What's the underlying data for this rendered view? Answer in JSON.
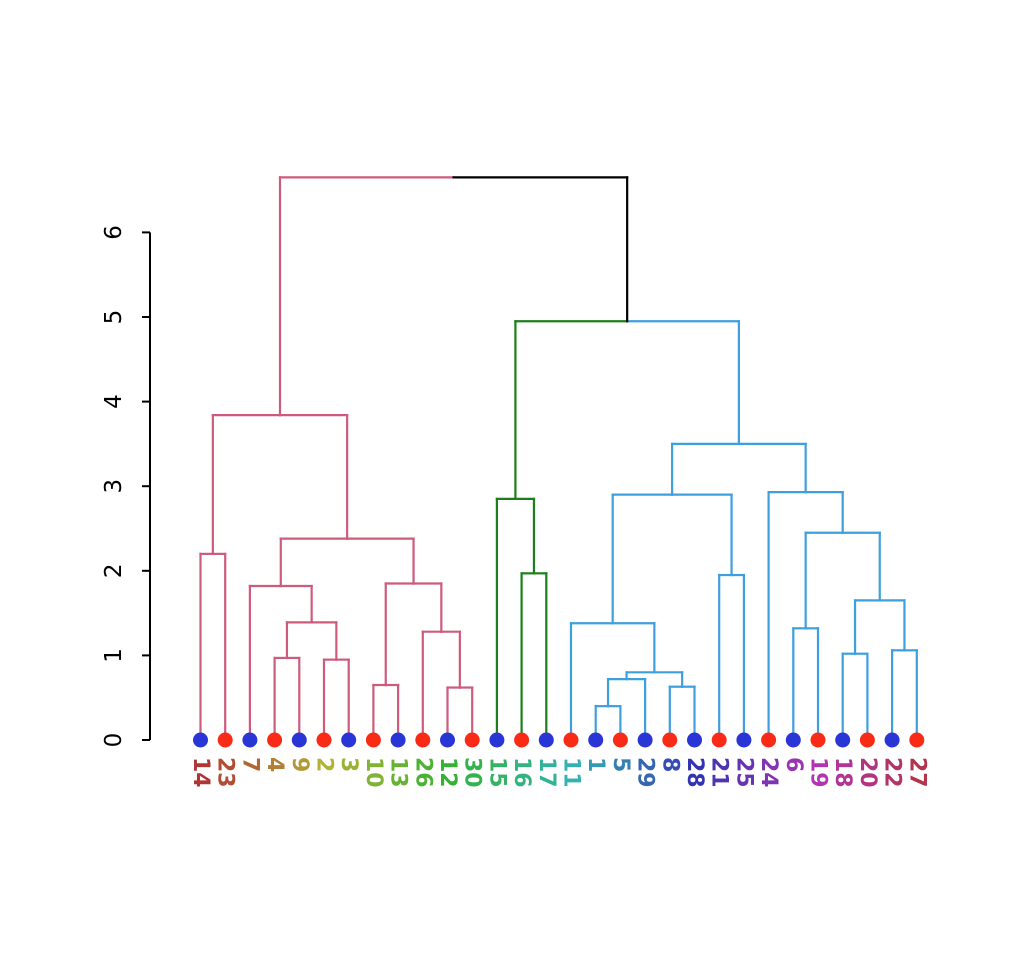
{
  "chart_data": {
    "type": "dendrogram",
    "title": "",
    "xlabel": "",
    "ylabel": "",
    "grid": false,
    "legend": false,
    "ylim": [
      0,
      6.8
    ],
    "y_ticks": [
      0,
      1,
      2,
      3,
      4,
      5,
      6
    ],
    "dot_colors": {
      "red": "#FA2B16",
      "blue": "#2A35D6"
    },
    "branch_colors": {
      "c1": "#CD5B7C",
      "c2": "#1B7F1B",
      "c3": "#3E9FDE",
      "k": "#000000"
    },
    "leaves": [
      {
        "label": "14",
        "color": "#B23434",
        "dot": "blue"
      },
      {
        "label": "23",
        "color": "#B24D34",
        "dot": "red"
      },
      {
        "label": "7",
        "color": "#B26634",
        "dot": "blue"
      },
      {
        "label": "4",
        "color": "#B28034",
        "dot": "red"
      },
      {
        "label": "9",
        "color": "#B29934",
        "dot": "blue"
      },
      {
        "label": "2",
        "color": "#B2B234",
        "dot": "red"
      },
      {
        "label": "3",
        "color": "#99B234",
        "dot": "blue"
      },
      {
        "label": "10",
        "color": "#80B234",
        "dot": "red"
      },
      {
        "label": "13",
        "color": "#66B234",
        "dot": "blue"
      },
      {
        "label": "26",
        "color": "#4DB234",
        "dot": "red"
      },
      {
        "label": "12",
        "color": "#34B234",
        "dot": "blue"
      },
      {
        "label": "30",
        "color": "#34B24D",
        "dot": "red"
      },
      {
        "label": "15",
        "color": "#34B266",
        "dot": "blue"
      },
      {
        "label": "16",
        "color": "#34B280",
        "dot": "red"
      },
      {
        "label": "17",
        "color": "#34B299",
        "dot": "blue"
      },
      {
        "label": "11",
        "color": "#34B2B2",
        "dot": "red"
      },
      {
        "label": "1",
        "color": "#3499B2",
        "dot": "blue"
      },
      {
        "label": "5",
        "color": "#3480B2",
        "dot": "red"
      },
      {
        "label": "29",
        "color": "#3466B2",
        "dot": "blue"
      },
      {
        "label": "8",
        "color": "#344DB2",
        "dot": "red"
      },
      {
        "label": "28",
        "color": "#3434B2",
        "dot": "blue"
      },
      {
        "label": "21",
        "color": "#4D34B2",
        "dot": "red"
      },
      {
        "label": "25",
        "color": "#6634B2",
        "dot": "blue"
      },
      {
        "label": "24",
        "color": "#8034B2",
        "dot": "red"
      },
      {
        "label": "6",
        "color": "#9934B2",
        "dot": "blue"
      },
      {
        "label": "19",
        "color": "#B234B2",
        "dot": "red"
      },
      {
        "label": "18",
        "color": "#B23499",
        "dot": "blue"
      },
      {
        "label": "20",
        "color": "#B23480",
        "dot": "red"
      },
      {
        "label": "22",
        "color": "#B23466",
        "dot": "blue"
      },
      {
        "label": "27",
        "color": "#B2344D",
        "dot": "red"
      }
    ],
    "merges": [
      {
        "a": "l0",
        "b": "l1",
        "h": 2.2,
        "ca": "c1",
        "cb": "c1"
      },
      {
        "a": "l3",
        "b": "l4",
        "h": 0.97,
        "ca": "c1",
        "cb": "c1"
      },
      {
        "a": "l5",
        "b": "l6",
        "h": 0.95,
        "ca": "c1",
        "cb": "c1"
      },
      {
        "a": "m1",
        "b": "m2",
        "h": 1.39,
        "ca": "c1",
        "cb": "c1"
      },
      {
        "a": "l2",
        "b": "m3",
        "h": 1.82,
        "ca": "c1",
        "cb": "c1"
      },
      {
        "a": "l7",
        "b": "l8",
        "h": 0.65,
        "ca": "c1",
        "cb": "c1"
      },
      {
        "a": "l10",
        "b": "l11",
        "h": 0.62,
        "ca": "c1",
        "cb": "c1"
      },
      {
        "a": "l9",
        "b": "m6",
        "h": 1.28,
        "ca": "c1",
        "cb": "c1"
      },
      {
        "a": "m5",
        "b": "m7",
        "h": 1.85,
        "ca": "c1",
        "cb": "c1"
      },
      {
        "a": "m4",
        "b": "m8",
        "h": 2.38,
        "ca": "c1",
        "cb": "c1"
      },
      {
        "a": "m0",
        "b": "m9",
        "h": 3.84,
        "ca": "c1",
        "cb": "c1"
      },
      {
        "a": "l13",
        "b": "l14",
        "h": 1.97,
        "ca": "c2",
        "cb": "c2"
      },
      {
        "a": "l12",
        "b": "m11",
        "h": 2.85,
        "ca": "c2",
        "cb": "c2"
      },
      {
        "a": "l16",
        "b": "l17",
        "h": 0.4,
        "ca": "c3",
        "cb": "c3"
      },
      {
        "a": "m13",
        "b": "l18",
        "h": 0.72,
        "ca": "c3",
        "cb": "c3"
      },
      {
        "a": "l19",
        "b": "l20",
        "h": 0.63,
        "ca": "c3",
        "cb": "c3"
      },
      {
        "a": "m14",
        "b": "m15",
        "h": 0.8,
        "ca": "c3",
        "cb": "c3"
      },
      {
        "a": "l15",
        "b": "m16",
        "h": 1.38,
        "ca": "c3",
        "cb": "c3"
      },
      {
        "a": "l21",
        "b": "l22",
        "h": 1.95,
        "ca": "c3",
        "cb": "c3"
      },
      {
        "a": "m17",
        "b": "m18",
        "h": 2.9,
        "ca": "c3",
        "cb": "c3"
      },
      {
        "a": "l24",
        "b": "l25",
        "h": 1.32,
        "ca": "c3",
        "cb": "c3"
      },
      {
        "a": "l26",
        "b": "l27",
        "h": 1.02,
        "ca": "c3",
        "cb": "c3"
      },
      {
        "a": "l28",
        "b": "l29",
        "h": 1.06,
        "ca": "c3",
        "cb": "c3"
      },
      {
        "a": "m21",
        "b": "m22",
        "h": 1.65,
        "ca": "c3",
        "cb": "c3"
      },
      {
        "a": "m20",
        "b": "m23",
        "h": 2.45,
        "ca": "c3",
        "cb": "c3"
      },
      {
        "a": "l23",
        "b": "m24",
        "h": 2.93,
        "ca": "c3",
        "cb": "c3"
      },
      {
        "a": "m19",
        "b": "m25",
        "h": 3.5,
        "ca": "c3",
        "cb": "c3"
      },
      {
        "a": "m12",
        "b": "m26",
        "h": 4.95,
        "ca": "c2",
        "cb": "c3"
      },
      {
        "a": "m10",
        "b": "m27",
        "h": 6.65,
        "ca": "c1",
        "cb": "k"
      }
    ]
  }
}
